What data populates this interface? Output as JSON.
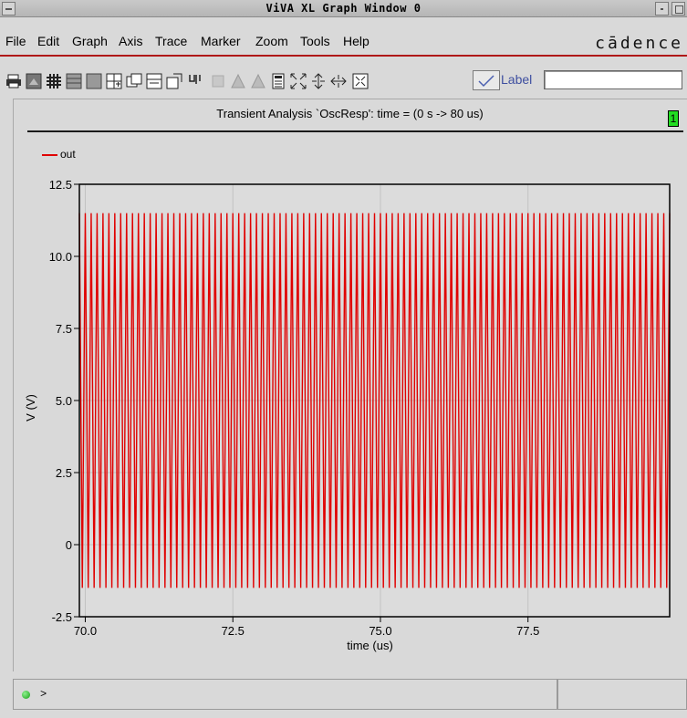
{
  "window": {
    "title": "ViVA XL  Graph Window 0"
  },
  "menu": {
    "items": [
      "File",
      "Edit",
      "Graph",
      "Axis",
      "Trace",
      "Marker",
      "Zoom",
      "Tools",
      "Help"
    ],
    "brand": "cādence"
  },
  "toolbar": {
    "icons": [
      "print-icon",
      "hardcopy-icon",
      "grid-icon",
      "strip-icon",
      "composite-icon",
      "add-subwindow-icon",
      "copy-subwindow-icon",
      "delete-subwindow-icon",
      "new-window-icon",
      "label-icon",
      "disabled-icon",
      "disabled-icon",
      "disabled-icon",
      "calculator-icon",
      "zoom-fit-icon",
      "zoom-x-icon",
      "zoom-y-icon",
      "zoom-box-icon"
    ],
    "label_toggle": "Label",
    "label_input_value": ""
  },
  "subplot": {
    "title": "Transient Analysis `OscResp': time = (0 s -> 80 us)",
    "number": "1"
  },
  "chart_data": {
    "type": "line",
    "title": "Transient Analysis `OscResp': time = (0 s -> 80 us)",
    "xlabel": "time (us)",
    "ylabel": "V (V)",
    "xlim": [
      69.9,
      79.9
    ],
    "ylim": [
      -2.5,
      12.5
    ],
    "xticks": [
      "70.0",
      "72.5",
      "75.0",
      "77.5"
    ],
    "xtick_values": [
      70.0,
      72.5,
      75.0,
      77.5
    ],
    "yticks": [
      "12.5",
      "10.0",
      "7.5",
      "5.0",
      "2.5",
      "0",
      "-2.5"
    ],
    "ytick_values": [
      12.5,
      10.0,
      7.5,
      5.0,
      2.5,
      0,
      -2.5
    ],
    "grid": true,
    "legend_position": "top-left",
    "series": [
      {
        "name": "out",
        "color": "#e00000",
        "waveform": "oscillation",
        "period_us": 0.1,
        "min_v": -1.5,
        "max_v": 11.5,
        "x_start": 69.9,
        "x_end": 79.9
      }
    ]
  },
  "status": {
    "prompt": ">"
  }
}
